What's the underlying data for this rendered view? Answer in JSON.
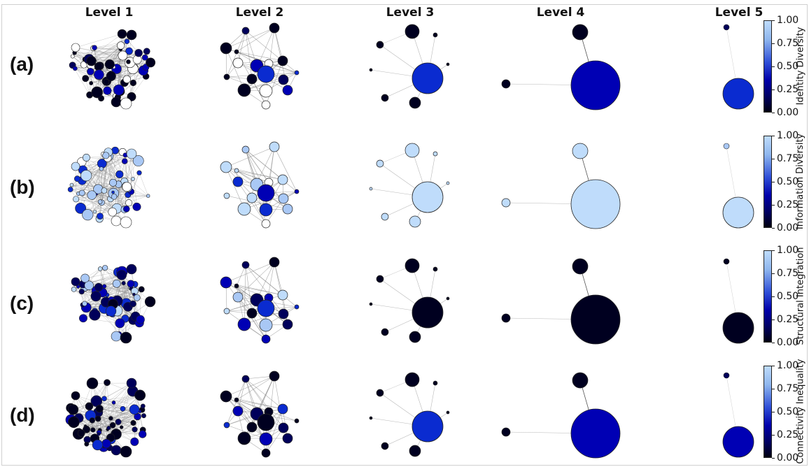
{
  "levels": [
    "Level 1",
    "Level 2",
    "Level 3",
    "Level 4",
    "Level 5"
  ],
  "rows": [
    {
      "id": "a",
      "label": "(a)",
      "metric": "Identity Diversity"
    },
    {
      "id": "b",
      "label": "(b)",
      "metric": "Information Diversity"
    },
    {
      "id": "c",
      "label": "(c)",
      "metric": "Structural Integration"
    },
    {
      "id": "d",
      "label": "(d)",
      "metric": "Connectivity Inequality"
    }
  ],
  "colorbar_ticks": [
    "1.00",
    "0.75",
    "0.50",
    "0.25",
    "0.00"
  ],
  "colors": {
    "node_dark": "#000020",
    "node_navy": "#00005a",
    "node_blue": "#0000b4",
    "node_mid": "#0a2bd0",
    "node_light": "#bfdcfb",
    "node_pale": "#a9c8f5",
    "edge": "#888888",
    "empty": "#ffffff"
  }
}
